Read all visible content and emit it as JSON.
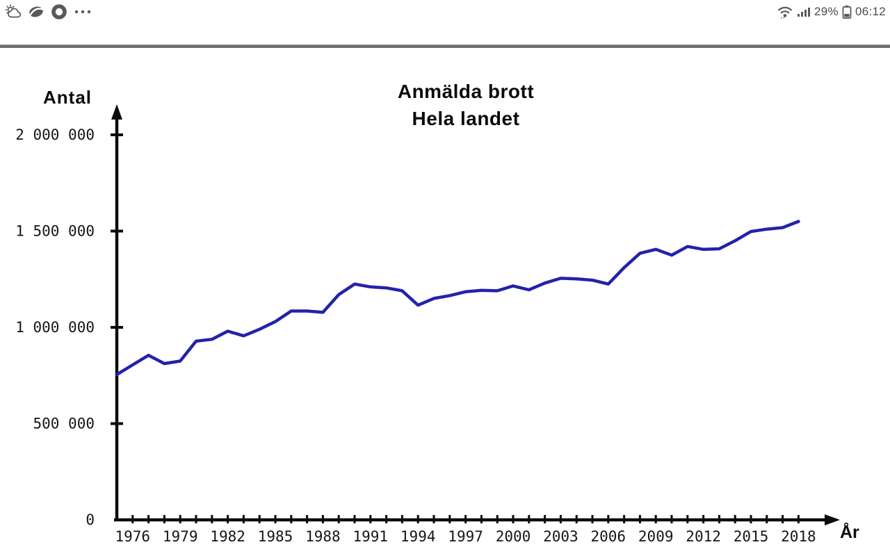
{
  "status_bar": {
    "left_icons": [
      "weather-icon",
      "eye-comfort-icon",
      "ring-icon",
      "more-notifications-icon"
    ],
    "right_icons": [
      "wifi-icon",
      "cellular-signal-icon",
      "battery-icon"
    ],
    "battery_percent": "29%",
    "time": "06:12"
  },
  "colors": {
    "status_icon": "#595959",
    "divider": "#6e6e6e",
    "axis": "#0b0b0b",
    "tick_text": "#151515",
    "line": "#2222aa",
    "background": "#ffffff"
  },
  "chart_data": {
    "type": "line",
    "title_line1": "Anmälda brott",
    "title_line2": "Hela landet",
    "ylabel": "Antal",
    "xlabel": "År",
    "grid": false,
    "legend": "none",
    "xlim": [
      1975,
      2018
    ],
    "ylim": [
      0,
      2000000
    ],
    "line_color": "#2222aa",
    "x": [
      1975,
      1976,
      1977,
      1978,
      1979,
      1980,
      1981,
      1982,
      1983,
      1984,
      1985,
      1986,
      1987,
      1988,
      1989,
      1990,
      1991,
      1992,
      1993,
      1994,
      1995,
      1996,
      1997,
      1998,
      1999,
      2000,
      2001,
      2002,
      2003,
      2004,
      2005,
      2006,
      2007,
      2008,
      2009,
      2010,
      2011,
      2012,
      2013,
      2014,
      2015,
      2016,
      2017,
      2018
    ],
    "series": [
      {
        "name": "Anmälda brott, hela landet",
        "values": [
          755000,
          805000,
          855000,
          812000,
          825000,
          928000,
          938000,
          980000,
          956000,
          990000,
          1030000,
          1085000,
          1085000,
          1078000,
          1170000,
          1225000,
          1210000,
          1205000,
          1190000,
          1115000,
          1150000,
          1165000,
          1185000,
          1192000,
          1190000,
          1215000,
          1195000,
          1230000,
          1255000,
          1252000,
          1245000,
          1225000,
          1310000,
          1385000,
          1405000,
          1375000,
          1420000,
          1405000,
          1408000,
          1450000,
          1498000,
          1510000,
          1518000,
          1550000
        ]
      }
    ],
    "y_ticks": [
      {
        "label": "2 000 000",
        "value": 2000000
      },
      {
        "label": "1 500 000",
        "value": 1500000
      },
      {
        "label": "1 000 000",
        "value": 1000000
      },
      {
        "label": "500 000",
        "value": 500000
      },
      {
        "label": "0",
        "value": 0
      }
    ],
    "x_tick_labels": [
      "1976",
      "1979",
      "1982",
      "1985",
      "1988",
      "1991",
      "1994",
      "1997",
      "2000",
      "2003",
      "2006",
      "2009",
      "2012",
      "2015",
      "2018"
    ],
    "x_tick_every_year": true
  }
}
